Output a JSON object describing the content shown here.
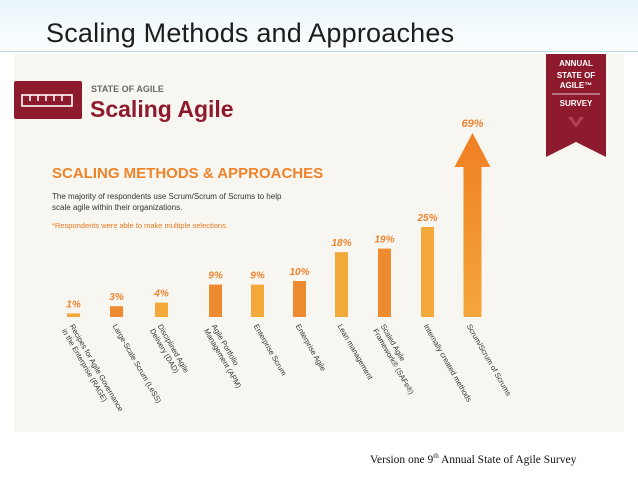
{
  "slide": {
    "title": "Scaling Methods and Approaches",
    "footer": {
      "prefix": "Version one 9",
      "superscript": "th",
      "suffix": " Annual State of Agile Survey"
    }
  },
  "infographic": {
    "kicker": "STATE OF AGILE",
    "heading": "Scaling Agile",
    "section_title": "SCALING METHODS & APPROACHES",
    "description": [
      "The majority of respondents use Scrum/Scrum of Scrums to help",
      "scale agile within their organizations."
    ],
    "footnote": "*Respondents were able to make multiple selections.",
    "badge": {
      "lines": [
        "ANNUAL",
        "STATE OF",
        "AGILE™",
        "SURVEY"
      ]
    },
    "colors": {
      "brand": "#8e1b2d",
      "heading": "#f0832a",
      "text": "#333333",
      "footnote": "#e9791f"
    },
    "icon": "ruler-icon"
  },
  "chart_data": {
    "type": "bar",
    "title": "SCALING METHODS & APPROACHES",
    "categories": [
      "Recipes for Agile Governance in the Enterprise (RAGE)",
      "Large-Scale Scrum (LeSS)",
      "Disciplined Agile Delivery (DAD)",
      "Agile Portfolio Management (APM)",
      "Enterprise Scrum",
      "Enterprise Agile",
      "Lean management",
      "Scaled Agile Framework® (SAFe®)",
      "Internally created methods",
      "Scrum/Scrum of Scrums"
    ],
    "label_lines": [
      [
        "Recipes for Agile Governance",
        "in the Enterprise (RAGE)"
      ],
      [
        "Large-Scale Scrum (LeSS)"
      ],
      [
        "Disciplined Agile",
        "Delivery (DAD)"
      ],
      [
        "Agile Portfolio",
        "Management (APM)"
      ],
      [
        "Enterprise Scrum"
      ],
      [
        "Enterprise Agile"
      ],
      [
        "Lean management"
      ],
      [
        "Scaled Agile",
        "Framework® (SAFe®)"
      ],
      [
        "Internally created methods"
      ],
      [
        "Scrum/Scrum of Scrums"
      ]
    ],
    "values": [
      1,
      3,
      4,
      9,
      9,
      10,
      18,
      19,
      25,
      69
    ],
    "value_labels": [
      "1%",
      "3%",
      "4%",
      "9%",
      "9%",
      "10%",
      "18%",
      "19%",
      "25%",
      "69%"
    ],
    "bar_colors": [
      "#f2a93a",
      "#ee8a2f",
      "#f2a93a",
      "#ee8a2f",
      "#f2a93a",
      "#ee8a2f",
      "#f2a93a",
      "#ee8a2f",
      "#f2a93a",
      "#ee8a2f"
    ],
    "label_color": "#ef8430",
    "highlight": "Scrum/Scrum of Scrums",
    "grid": false,
    "legend": "none",
    "ylim": [
      0,
      69
    ]
  }
}
